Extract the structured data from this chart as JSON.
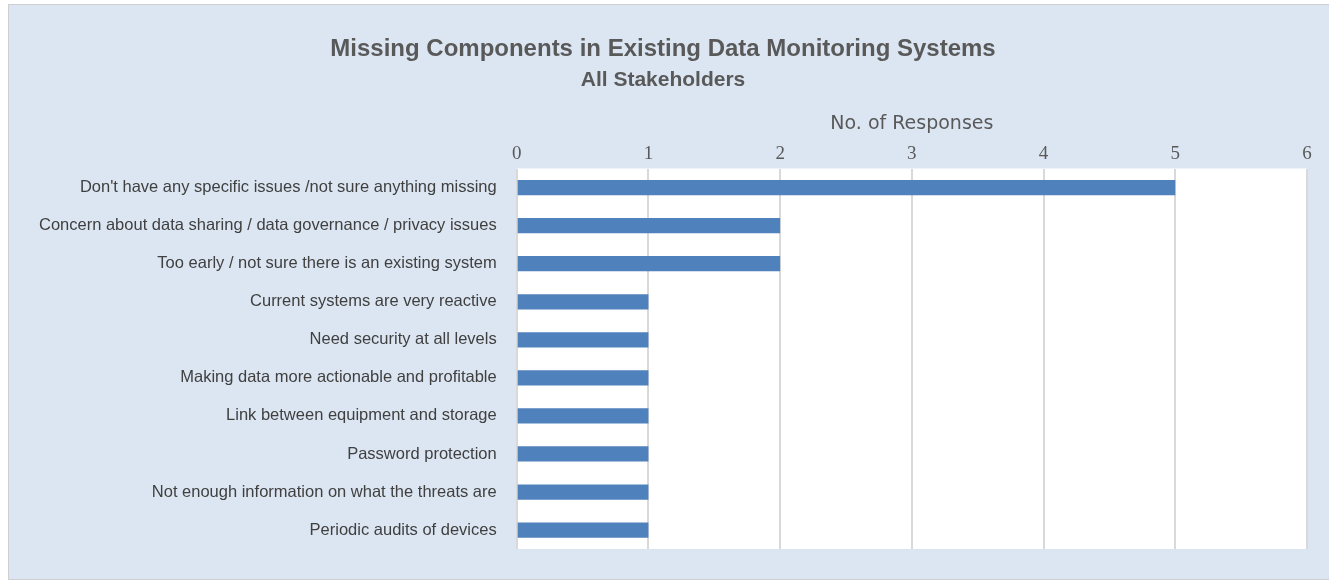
{
  "chart_data": {
    "type": "bar",
    "orientation": "horizontal",
    "title": "Missing Components in Existing Data Monitoring Systems",
    "subtitle": "All Stakeholders",
    "xlabel": "No. of Responses",
    "categories": [
      "Don't have any specific issues /not sure anything missing",
      "Concern about data sharing / data governance / privacy issues",
      "Too early / not sure there is an existing system",
      "Current systems are very reactive",
      "Need security at all levels",
      "Making data more actionable and profitable",
      "Link between equipment and storage",
      "Password protection",
      "Not enough information on what the threats are",
      "Periodic audits of devices"
    ],
    "values": [
      5,
      2,
      2,
      1,
      1,
      1,
      1,
      1,
      1,
      1
    ],
    "color": "#4f81bd",
    "xlim": [
      0,
      6
    ],
    "xticks": [
      0,
      1,
      2,
      3,
      4,
      5,
      6
    ],
    "grid": "x",
    "legend": false
  }
}
